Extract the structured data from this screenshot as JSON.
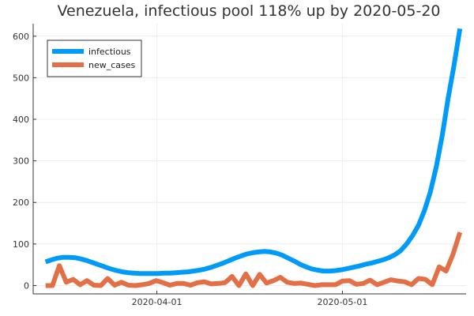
{
  "chart_data": {
    "type": "line",
    "title": "Venezuela, infectious pool 118% up by 2020-05-20",
    "xlabel": "",
    "ylabel": "",
    "x_start": "2020-03-14",
    "x_end": "2020-05-20",
    "xlim": [
      "2020-03-12",
      "2020-05-21"
    ],
    "ylim": [
      -20,
      630
    ],
    "x_ticks": [
      {
        "date": "2020-04-01",
        "label": "2020-04-01"
      },
      {
        "date": "2020-05-01",
        "label": "2020-05-01"
      }
    ],
    "y_ticks": [
      0,
      100,
      200,
      300,
      400,
      500,
      600
    ],
    "grid": true,
    "legend_position": "top-left",
    "series": [
      {
        "name": "infectious",
        "color": "#009af9",
        "values": [
          57,
          62,
          66,
          68,
          68,
          67,
          64,
          60,
          55,
          50,
          45,
          40,
          36,
          33,
          31,
          30,
          29,
          29,
          29,
          29,
          30,
          30,
          31,
          32,
          33,
          35,
          37,
          40,
          44,
          49,
          54,
          60,
          66,
          71,
          76,
          79,
          81,
          82,
          81,
          78,
          73,
          66,
          59,
          51,
          45,
          40,
          37,
          35,
          35,
          36,
          38,
          41,
          44,
          47,
          51,
          54,
          58,
          62,
          67,
          74,
          84,
          100,
          120,
          145,
          180,
          225,
          285,
          360,
          450,
          530,
          618
        ]
      },
      {
        "name": "new_cases",
        "color": "#e26f46",
        "values": [
          0,
          0,
          48,
          8,
          15,
          2,
          12,
          1,
          0,
          17,
          1,
          8,
          1,
          0,
          2,
          5,
          12,
          7,
          1,
          5,
          5,
          1,
          7,
          9,
          4,
          5,
          7,
          22,
          0,
          28,
          0,
          27,
          6,
          12,
          20,
          8,
          5,
          6,
          3,
          0,
          2,
          2,
          2,
          11,
          12,
          3,
          5,
          13,
          2,
          8,
          14,
          11,
          9,
          2,
          17,
          15,
          2,
          45,
          35,
          75,
          128
        ]
      }
    ]
  }
}
